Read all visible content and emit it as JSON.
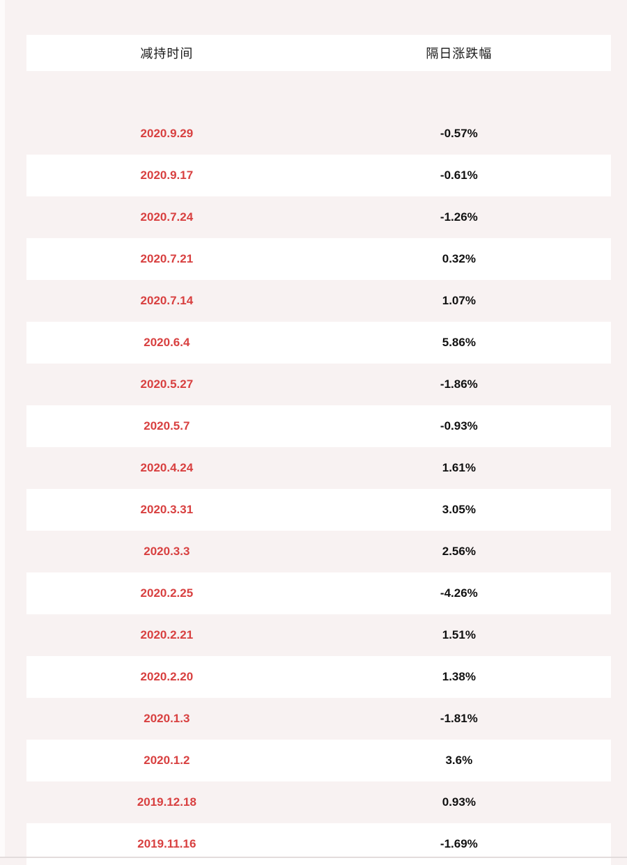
{
  "table": {
    "columns": [
      {
        "label": "减持时间"
      },
      {
        "label": "隔日涨跌幅"
      }
    ],
    "rows": [
      {
        "date": "2020.9.29",
        "change": "-0.57%"
      },
      {
        "date": "2020.9.17",
        "change": "-0.61%"
      },
      {
        "date": "2020.7.24",
        "change": "-1.26%"
      },
      {
        "date": "2020.7.21",
        "change": "0.32%"
      },
      {
        "date": "2020.7.14",
        "change": "1.07%"
      },
      {
        "date": "2020.6.4",
        "change": "5.86%"
      },
      {
        "date": "2020.5.27",
        "change": "-1.86%"
      },
      {
        "date": "2020.5.7",
        "change": "-0.93%"
      },
      {
        "date": "2020.4.24",
        "change": "1.61%"
      },
      {
        "date": "2020.3.31",
        "change": "3.05%"
      },
      {
        "date": "2020.3.3",
        "change": "2.56%"
      },
      {
        "date": "2020.2.25",
        "change": "-4.26%"
      },
      {
        "date": "2020.2.21",
        "change": "1.51%"
      },
      {
        "date": "2020.2.20",
        "change": "1.38%"
      },
      {
        "date": "2020.1.3",
        "change": "-1.81%"
      },
      {
        "date": "2020.1.2",
        "change": "3.6%"
      },
      {
        "date": "2019.12.18",
        "change": "0.93%"
      },
      {
        "date": "2019.11.16",
        "change": "-1.69%"
      }
    ]
  },
  "colors": {
    "page_background": "#f8f2f2",
    "row_white": "#ffffff",
    "row_pink": "#f8f2f2",
    "date_red": "#d84040",
    "value_black": "#111111"
  },
  "chart_data": {
    "type": "table",
    "title": "",
    "columns": [
      "减持时间",
      "隔日涨跌幅"
    ],
    "categories": [
      "2020.9.29",
      "2020.9.17",
      "2020.7.24",
      "2020.7.21",
      "2020.7.14",
      "2020.6.4",
      "2020.5.27",
      "2020.5.7",
      "2020.4.24",
      "2020.3.31",
      "2020.3.3",
      "2020.2.25",
      "2020.2.21",
      "2020.2.20",
      "2020.1.3",
      "2020.1.2",
      "2019.12.18",
      "2019.11.16"
    ],
    "values": [
      -0.57,
      -0.61,
      -1.26,
      0.32,
      1.07,
      5.86,
      -1.86,
      -0.93,
      1.61,
      3.05,
      2.56,
      -4.26,
      1.51,
      1.38,
      -1.81,
      3.6,
      0.93,
      -1.69
    ],
    "value_unit": "%"
  }
}
